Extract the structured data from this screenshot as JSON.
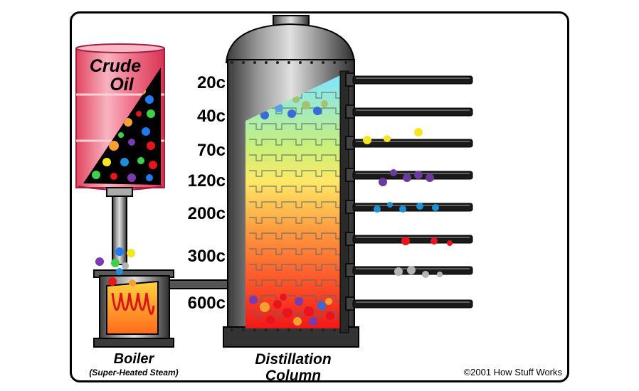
{
  "diagram": {
    "crude_oil_line1": "Crude",
    "crude_oil_line2": "Oil",
    "temperatures": [
      "20c",
      "40c",
      "70c",
      "120c",
      "200c",
      "300c",
      "600c"
    ],
    "boiler_label": "Boiler",
    "boiler_sublabel": "(Super-Heated Steam)",
    "column_label_line1": "Distillation",
    "column_label_line2": "Column",
    "copyright": "©2001 How Stuff Works"
  },
  "colors": {
    "barrel": "#f0607a",
    "barrel_light": "#f7a0b0",
    "metal": "#8c8c8c",
    "pipe": "#1a1a1a",
    "fraction_colors": [
      "#f5e625",
      "#6b3a9a",
      "#1e90d8",
      "#e8141e",
      "#b4b4b4"
    ]
  }
}
